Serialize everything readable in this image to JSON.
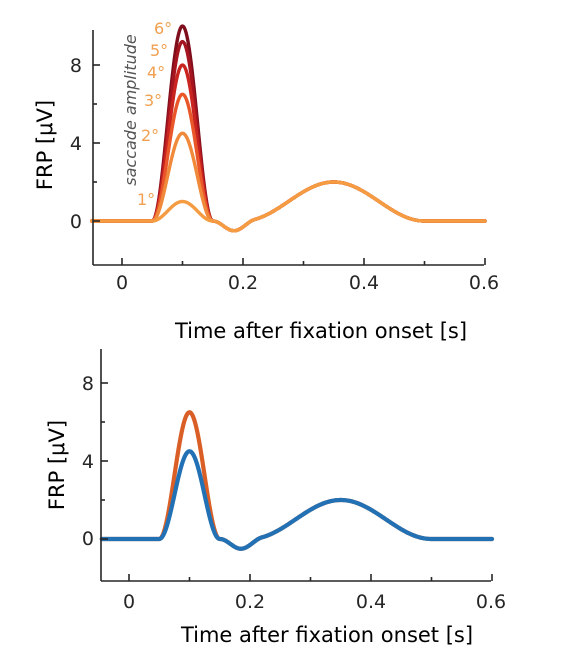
{
  "chart_data": [
    {
      "type": "line",
      "xlabel": "Time after fixation onset [s]",
      "ylabel": "FRP [μV]",
      "xlim": [
        -0.05,
        0.6
      ],
      "ylim": [
        -1.8,
        10.2
      ],
      "xticks": [
        "0",
        "0.2",
        "0.4",
        "0.6"
      ],
      "yticks": [
        "0",
        "4",
        "8"
      ],
      "annotation": "saccade amplitude",
      "series": [
        {
          "name": "1°",
          "peak": 1.0,
          "color": "#F59B42"
        },
        {
          "name": "2°",
          "peak": 4.5,
          "color": "#F08A3A"
        },
        {
          "name": "3°",
          "peak": 6.5,
          "color": "#E9562A"
        },
        {
          "name": "4°",
          "peak": 8.0,
          "color": "#C92420"
        },
        {
          "name": "5°",
          "peak": 9.2,
          "color": "#A5151F"
        },
        {
          "name": "6°",
          "peak": 10.0,
          "color": "#7E0E1C"
        }
      ],
      "label_color": "#F0A050",
      "late_component": {
        "center": 0.35,
        "peak": 2.0
      },
      "dip": {
        "time": 0.178,
        "value": -0.5
      }
    },
    {
      "type": "line",
      "xlabel": "Time after fixation onset [s]",
      "ylabel": "FRP [μV]",
      "xlim": [
        -0.045,
        0.6
      ],
      "ylim": [
        -2.2,
        10.2
      ],
      "xticks": [
        "0",
        "0.2",
        "0.4",
        "0.6"
      ],
      "yticks": [
        "0",
        "4",
        "8"
      ],
      "series": [
        {
          "peak": 6.5,
          "color": "#D95F26"
        },
        {
          "peak": 4.5,
          "color": "#2371B5"
        }
      ],
      "late_component": {
        "center": 0.355,
        "peak": 2.0
      },
      "dip": {
        "time": 0.178,
        "value": -0.5
      }
    }
  ]
}
